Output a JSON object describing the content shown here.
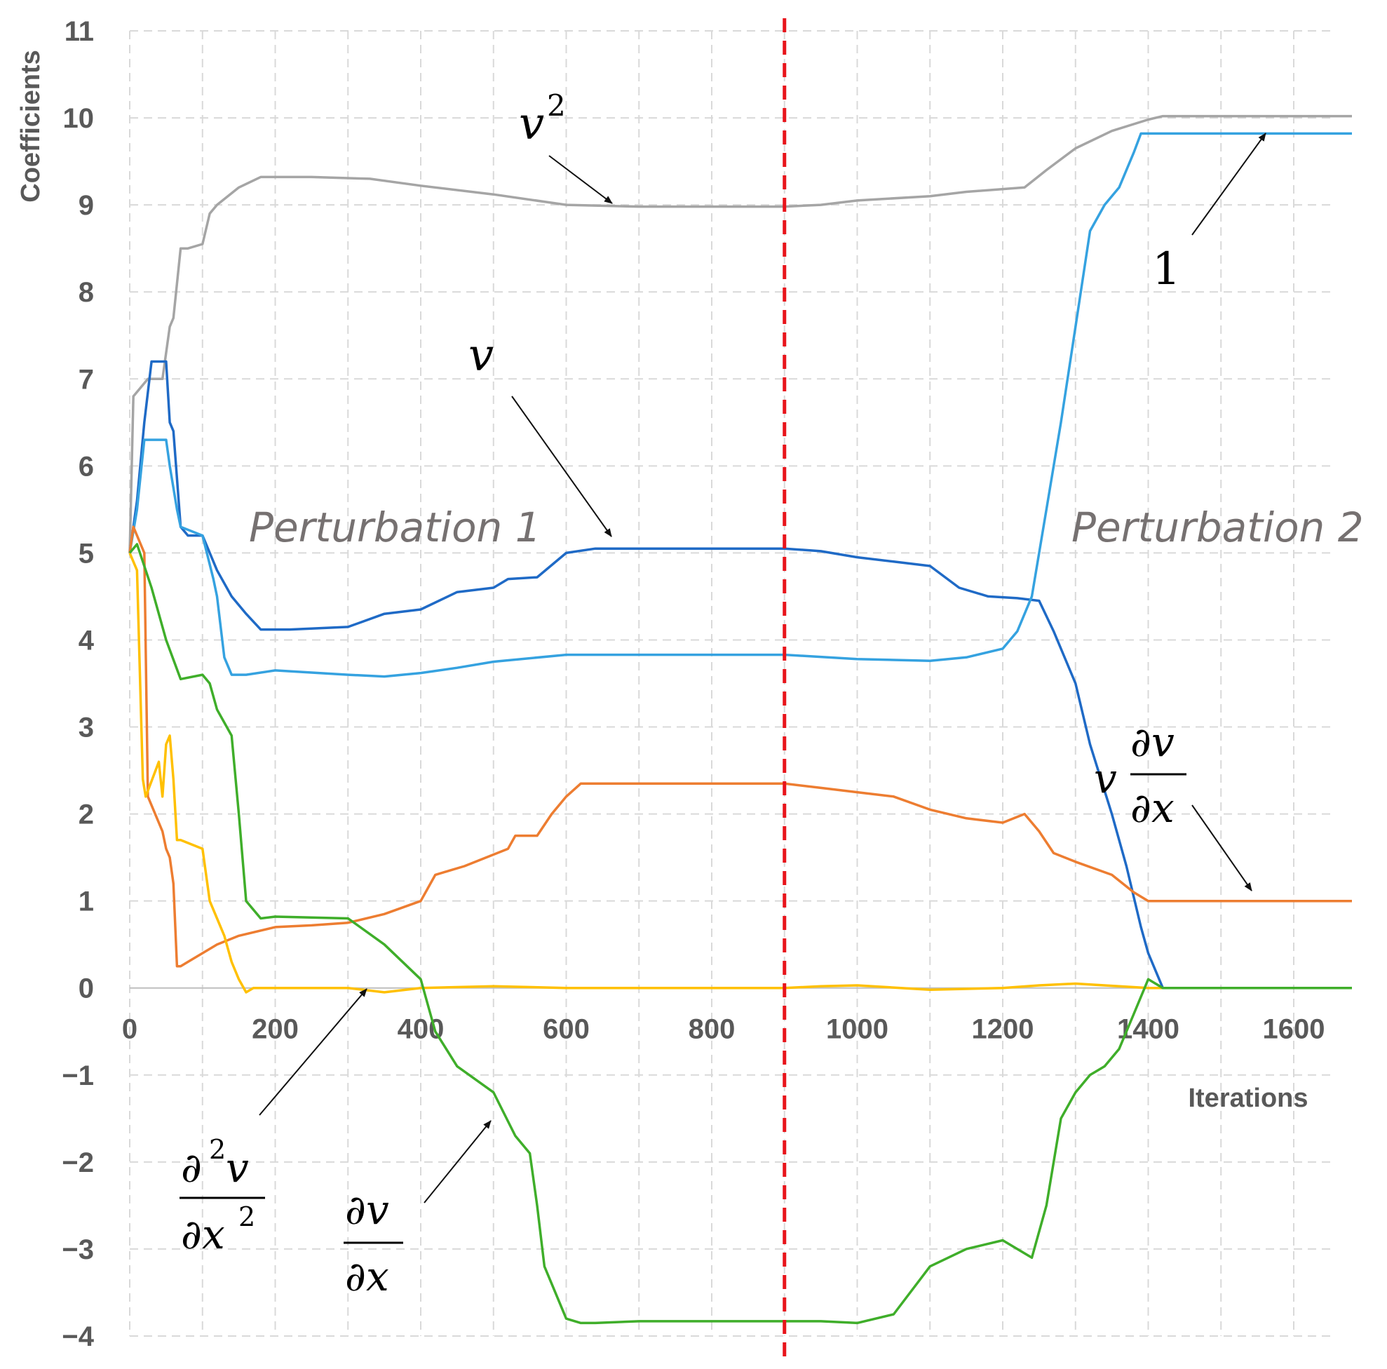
{
  "chart_data": {
    "type": "line",
    "title": "",
    "xlabel": "Iterations",
    "ylabel": "Coefficients",
    "xlim": [
      0,
      1680
    ],
    "ylim": [
      -4,
      11
    ],
    "x_ticks": [
      "0",
      "200",
      "400",
      "600",
      "800",
      "1000",
      "1200",
      "1400",
      "1600"
    ],
    "y_ticks": [
      "11",
      "10",
      "9",
      "8",
      "7",
      "6",
      "5",
      "4",
      "3",
      "2",
      "1",
      "0",
      "−1",
      "−2",
      "−3",
      "−4"
    ],
    "vertical_marker": {
      "x": 900,
      "color": "#e8141b",
      "style": "dashed"
    },
    "annotations": {
      "perturbation_1": "Perturbation 1",
      "perturbation_2": "Perturbation 2",
      "label_v2_base": "v",
      "label_v2_exp": "2",
      "label_v": "v",
      "label_one": "1",
      "label_vdvdx_v": "v",
      "label_vdvdx_num": "∂v",
      "label_vdvdx_den": "∂x",
      "label_d2v_num": "∂",
      "label_d2v_num_exp": "2",
      "label_d2v_num_var": "v",
      "label_d2v_den": "∂x",
      "label_d2v_den_exp": "2",
      "label_dvdx_num": "∂v",
      "label_dvdx_den": "∂x"
    },
    "series": [
      {
        "name": "v^2",
        "color": "#a5a5a5",
        "x": [
          0,
          5,
          25,
          45,
          55,
          60,
          70,
          80,
          100,
          110,
          120,
          150,
          180,
          250,
          330,
          400,
          500,
          600,
          700,
          800,
          900,
          950,
          1000,
          1100,
          1150,
          1230,
          1260,
          1300,
          1350,
          1400,
          1420,
          1500,
          1600,
          1680
        ],
        "values": [
          5.0,
          6.8,
          7.0,
          7.0,
          7.6,
          7.7,
          8.5,
          8.5,
          8.55,
          8.9,
          9.0,
          9.2,
          9.32,
          9.32,
          9.3,
          9.22,
          9.12,
          9.0,
          8.98,
          8.98,
          8.98,
          9.0,
          9.05,
          9.1,
          9.15,
          9.2,
          9.4,
          9.65,
          9.85,
          9.98,
          10.02,
          10.02,
          10.02,
          10.02
        ]
      },
      {
        "name": "v",
        "color": "#1f6ac6",
        "x": [
          0,
          10,
          20,
          30,
          50,
          55,
          60,
          70,
          80,
          100,
          120,
          140,
          160,
          180,
          220,
          300,
          350,
          400,
          450,
          500,
          520,
          560,
          600,
          640,
          700,
          800,
          900,
          950,
          1000,
          1050,
          1100,
          1140,
          1180,
          1220,
          1250,
          1270,
          1300,
          1320,
          1350,
          1370,
          1390,
          1400,
          1420,
          1500,
          1600,
          1680
        ],
        "values": [
          5.0,
          5.6,
          6.5,
          7.2,
          7.2,
          6.5,
          6.4,
          5.3,
          5.2,
          5.2,
          4.8,
          4.5,
          4.3,
          4.12,
          4.12,
          4.15,
          4.3,
          4.35,
          4.55,
          4.6,
          4.7,
          4.72,
          5.0,
          5.05,
          5.05,
          5.05,
          5.05,
          5.02,
          4.95,
          4.9,
          4.85,
          4.6,
          4.5,
          4.48,
          4.45,
          4.1,
          3.5,
          2.8,
          2.0,
          1.4,
          0.7,
          0.4,
          0.0,
          0.0,
          0.0,
          0.0
        ]
      },
      {
        "name": "1",
        "color": "#35a2e0",
        "x": [
          0,
          10,
          20,
          50,
          55,
          65,
          70,
          100,
          115,
          120,
          130,
          140,
          160,
          200,
          300,
          350,
          400,
          450,
          500,
          600,
          700,
          800,
          900,
          1000,
          1100,
          1150,
          1200,
          1220,
          1240,
          1260,
          1280,
          1300,
          1320,
          1340,
          1360,
          1380,
          1390,
          1400,
          1500,
          1600,
          1680
        ],
        "values": [
          5.0,
          5.5,
          6.3,
          6.3,
          6.0,
          5.5,
          5.3,
          5.2,
          4.7,
          4.5,
          3.8,
          3.6,
          3.6,
          3.65,
          3.6,
          3.58,
          3.62,
          3.68,
          3.75,
          3.83,
          3.83,
          3.83,
          3.83,
          3.78,
          3.76,
          3.8,
          3.9,
          4.1,
          4.5,
          5.5,
          6.5,
          7.6,
          8.7,
          9.0,
          9.2,
          9.6,
          9.82,
          9.82,
          9.82,
          9.82,
          9.82
        ]
      },
      {
        "name": "v ∂v/∂x",
        "color": "#ed7d31",
        "x": [
          0,
          5,
          20,
          25,
          45,
          50,
          55,
          60,
          65,
          70,
          80,
          120,
          150,
          200,
          250,
          300,
          350,
          400,
          420,
          440,
          460,
          520,
          530,
          560,
          580,
          600,
          620,
          640,
          700,
          800,
          900,
          950,
          1000,
          1050,
          1100,
          1150,
          1200,
          1230,
          1250,
          1270,
          1300,
          1350,
          1380,
          1400,
          1500,
          1600,
          1680
        ],
        "values": [
          5.0,
          5.3,
          5.0,
          2.2,
          1.8,
          1.6,
          1.5,
          1.2,
          0.25,
          0.25,
          0.3,
          0.5,
          0.6,
          0.7,
          0.72,
          0.75,
          0.85,
          1.0,
          1.3,
          1.35,
          1.4,
          1.6,
          1.75,
          1.75,
          2.0,
          2.2,
          2.35,
          2.35,
          2.35,
          2.35,
          2.35,
          2.3,
          2.25,
          2.2,
          2.05,
          1.95,
          1.9,
          2.0,
          1.8,
          1.55,
          1.45,
          1.3,
          1.1,
          1.0,
          1.0,
          1.0,
          1.0
        ]
      },
      {
        "name": "∂²v/∂x²",
        "color": "#ffc000",
        "x": [
          0,
          10,
          18,
          22,
          40,
          45,
          50,
          55,
          60,
          65,
          70,
          100,
          110,
          130,
          140,
          150,
          160,
          170,
          200,
          300,
          350,
          400,
          500,
          600,
          700,
          800,
          900,
          950,
          1000,
          1100,
          1200,
          1250,
          1300,
          1400,
          1500,
          1680
        ],
        "values": [
          5.0,
          4.8,
          2.4,
          2.2,
          2.6,
          2.2,
          2.8,
          2.9,
          2.4,
          1.7,
          1.7,
          1.6,
          1.0,
          0.6,
          0.3,
          0.1,
          -0.05,
          0.0,
          0.0,
          0.0,
          -0.05,
          0.0,
          0.02,
          0.0,
          0.0,
          0.0,
          0.0,
          0.02,
          0.03,
          -0.02,
          0.0,
          0.03,
          0.05,
          0.0,
          0.0,
          0.0
        ]
      },
      {
        "name": "∂v/∂x",
        "color": "#3fae2a",
        "x": [
          0,
          10,
          30,
          50,
          70,
          100,
          110,
          120,
          140,
          150,
          160,
          180,
          200,
          300,
          350,
          400,
          420,
          450,
          500,
          530,
          550,
          560,
          570,
          580,
          600,
          620,
          640,
          700,
          800,
          900,
          950,
          1000,
          1050,
          1100,
          1150,
          1200,
          1240,
          1260,
          1280,
          1300,
          1320,
          1340,
          1360,
          1380,
          1400,
          1420,
          1500,
          1600,
          1680
        ],
        "values": [
          5.0,
          5.1,
          4.6,
          4.0,
          3.55,
          3.6,
          3.5,
          3.2,
          2.9,
          2.0,
          1.0,
          0.8,
          0.82,
          0.8,
          0.5,
          0.1,
          -0.5,
          -0.9,
          -1.2,
          -1.7,
          -1.9,
          -2.5,
          -3.2,
          -3.4,
          -3.8,
          -3.85,
          -3.85,
          -3.83,
          -3.83,
          -3.83,
          -3.83,
          -3.85,
          -3.75,
          -3.2,
          -3.0,
          -2.9,
          -3.1,
          -2.5,
          -1.5,
          -1.2,
          -1.0,
          -0.9,
          -0.7,
          -0.3,
          0.1,
          0.0,
          0.0,
          0.0,
          0.0
        ]
      }
    ]
  }
}
